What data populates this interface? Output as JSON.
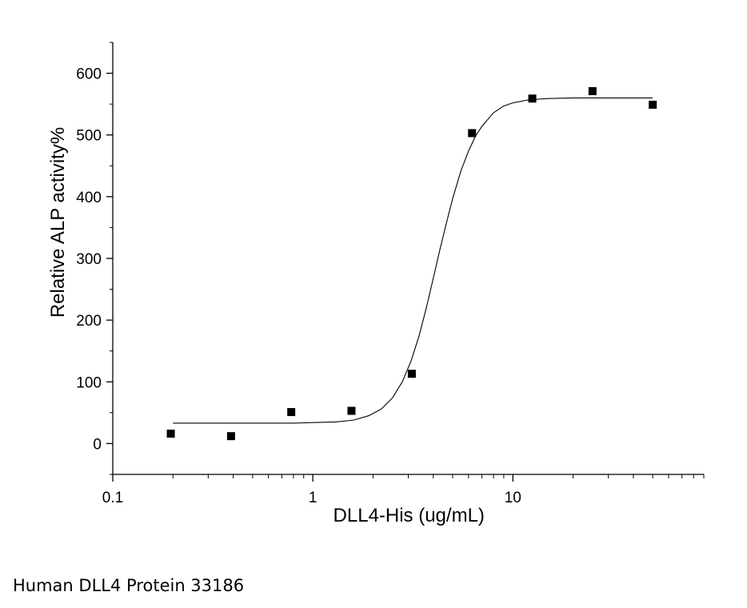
{
  "caption": "Human DLL4 Protein 33186",
  "chart_data": {
    "type": "scatter",
    "xlabel": "DLL4-His (ug/mL)",
    "ylabel": "Relative ALP activity%",
    "x_scale": "log",
    "xlim": [
      0.1,
      90
    ],
    "ylim": [
      -50,
      650
    ],
    "x_ticks": [
      0.1,
      1,
      10
    ],
    "x_tick_labels": [
      "0.1",
      "1",
      "10"
    ],
    "y_ticks": [
      0,
      100,
      200,
      300,
      400,
      500,
      600
    ],
    "y_tick_labels": [
      "0",
      "100",
      "200",
      "300",
      "400",
      "500",
      "600"
    ],
    "marker": "square",
    "marker_color": "#000000",
    "line_color": "#000000",
    "grid": false,
    "points": {
      "x": [
        0.195,
        0.39,
        0.78,
        1.56,
        3.125,
        6.25,
        12.5,
        25,
        50
      ],
      "y": [
        16,
        12,
        51,
        53,
        113,
        503,
        559,
        571,
        549
      ]
    },
    "fit_curve": {
      "x": [
        0.2,
        0.3,
        0.5,
        0.8,
        1.0,
        1.3,
        1.6,
        1.9,
        2.2,
        2.5,
        2.8,
        3.1,
        3.4,
        3.7,
        4.0,
        4.3,
        4.6,
        5.0,
        5.5,
        6.0,
        6.5,
        7.0,
        8.0,
        9.0,
        10.0,
        12.0,
        15.0,
        20.0,
        30.0,
        50.0
      ],
      "y": [
        33,
        33,
        33,
        33,
        34,
        35,
        38,
        45,
        56,
        74,
        100,
        134,
        175,
        221,
        268,
        312,
        351,
        397,
        442,
        474,
        498,
        514,
        536,
        547,
        552,
        557,
        559,
        560,
        560,
        560
      ]
    }
  }
}
